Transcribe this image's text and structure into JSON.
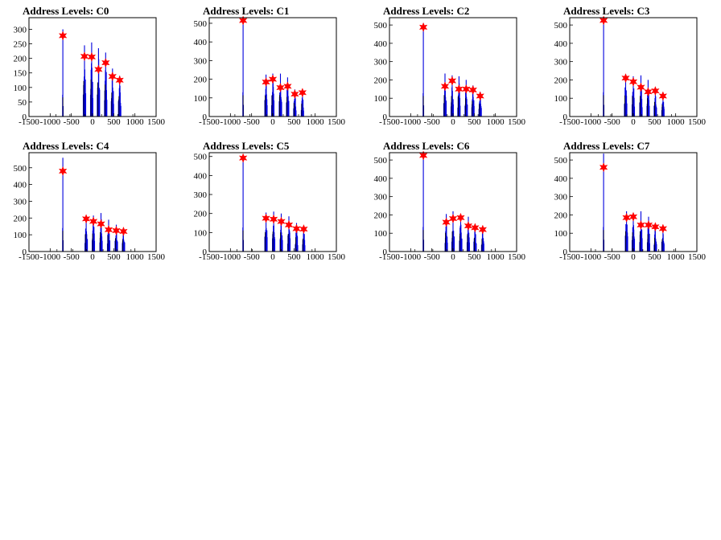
{
  "chart_data": [
    {
      "type": "bar",
      "title": "Address Levels: C0",
      "xlabel": "",
      "ylabel": "",
      "xlim": [
        -1500,
        1500
      ],
      "ylim": [
        0,
        340
      ],
      "xticks": [
        -1500,
        -1000,
        -500,
        0,
        500,
        1000,
        1500
      ],
      "yticks": [
        0,
        50,
        100,
        150,
        200,
        250,
        300
      ],
      "peaks": [
        {
          "x": -700,
          "y": 278
        },
        {
          "x": -190,
          "y": 207
        },
        {
          "x": -20,
          "y": 205
        },
        {
          "x": 140,
          "y": 162
        },
        {
          "x": 310,
          "y": 185
        },
        {
          "x": 470,
          "y": 138
        },
        {
          "x": 640,
          "y": 125
        }
      ],
      "max_heights": [
        300,
        245,
        255,
        235,
        220,
        165,
        140
      ]
    },
    {
      "type": "bar",
      "title": "Address Levels: C1",
      "xlabel": "",
      "ylabel": "",
      "xlim": [
        -1500,
        1500
      ],
      "ylim": [
        0,
        530
      ],
      "xticks": [
        -1500,
        -1000,
        -500,
        0,
        500,
        1000,
        1500
      ],
      "yticks": [
        0,
        100,
        200,
        300,
        400,
        500
      ],
      "peaks": [
        {
          "x": -700,
          "y": 515
        },
        {
          "x": -160,
          "y": 185
        },
        {
          "x": 0,
          "y": 200
        },
        {
          "x": 180,
          "y": 155
        },
        {
          "x": 350,
          "y": 162
        },
        {
          "x": 520,
          "y": 120
        },
        {
          "x": 700,
          "y": 128
        }
      ],
      "max_heights": [
        520,
        225,
        230,
        230,
        210,
        145,
        140
      ]
    },
    {
      "type": "bar",
      "title": "Address Levels: C2",
      "xlabel": "",
      "ylabel": "",
      "xlim": [
        -1500,
        1500
      ],
      "ylim": [
        0,
        540
      ],
      "xticks": [
        -1500,
        -1000,
        -500,
        0,
        500,
        1000,
        1500
      ],
      "yticks": [
        0,
        100,
        200,
        300,
        400,
        500
      ],
      "peaks": [
        {
          "x": -700,
          "y": 488
        },
        {
          "x": -190,
          "y": 165
        },
        {
          "x": -20,
          "y": 195
        },
        {
          "x": 140,
          "y": 150
        },
        {
          "x": 310,
          "y": 150
        },
        {
          "x": 470,
          "y": 145
        },
        {
          "x": 640,
          "y": 112
        }
      ],
      "max_heights": [
        510,
        235,
        225,
        220,
        200,
        170,
        135
      ]
    },
    {
      "type": "bar",
      "title": "Address Levels: C3",
      "xlabel": "",
      "ylabel": "",
      "xlim": [
        -1500,
        1500
      ],
      "ylim": [
        0,
        540
      ],
      "xticks": [
        -1500,
        -1000,
        -500,
        0,
        500,
        1000,
        1500
      ],
      "yticks": [
        0,
        100,
        200,
        300,
        400,
        500
      ],
      "peaks": [
        {
          "x": -700,
          "y": 525
        },
        {
          "x": -180,
          "y": 210
        },
        {
          "x": 0,
          "y": 190
        },
        {
          "x": 180,
          "y": 160
        },
        {
          "x": 350,
          "y": 135
        },
        {
          "x": 520,
          "y": 140
        },
        {
          "x": 700,
          "y": 112
        }
      ],
      "max_heights": [
        530,
        230,
        220,
        225,
        200,
        160,
        130
      ]
    },
    {
      "type": "bar",
      "title": "Address Levels: C4",
      "xlabel": "",
      "ylabel": "",
      "xlim": [
        -1500,
        1500
      ],
      "ylim": [
        0,
        590
      ],
      "xticks": [
        -1500,
        -1000,
        -500,
        0,
        500,
        1000,
        1500
      ],
      "yticks": [
        0,
        100,
        200,
        300,
        400,
        500
      ],
      "peaks": [
        {
          "x": -700,
          "y": 480
        },
        {
          "x": -150,
          "y": 195
        },
        {
          "x": 20,
          "y": 180
        },
        {
          "x": 200,
          "y": 165
        },
        {
          "x": 380,
          "y": 130
        },
        {
          "x": 560,
          "y": 125
        },
        {
          "x": 730,
          "y": 120
        }
      ],
      "max_heights": [
        560,
        210,
        215,
        230,
        190,
        160,
        140
      ]
    },
    {
      "type": "bar",
      "title": "Address Levels: C5",
      "xlabel": "",
      "ylabel": "",
      "xlim": [
        -1500,
        1500
      ],
      "ylim": [
        0,
        520
      ],
      "xticks": [
        -1500,
        -1000,
        -500,
        0,
        500,
        1000,
        1500
      ],
      "yticks": [
        0,
        100,
        200,
        300,
        400,
        500
      ],
      "peaks": [
        {
          "x": -700,
          "y": 492
        },
        {
          "x": -160,
          "y": 175
        },
        {
          "x": 20,
          "y": 170
        },
        {
          "x": 200,
          "y": 158
        },
        {
          "x": 380,
          "y": 140
        },
        {
          "x": 560,
          "y": 120
        },
        {
          "x": 730,
          "y": 118
        }
      ],
      "max_heights": [
        505,
        205,
        210,
        200,
        185,
        150,
        135
      ]
    },
    {
      "type": "bar",
      "title": "Address Levels: C6",
      "xlabel": "",
      "ylabel": "",
      "xlim": [
        -1500,
        1500
      ],
      "ylim": [
        0,
        540
      ],
      "xticks": [
        -1500,
        -1000,
        -500,
        0,
        500,
        1000,
        1500
      ],
      "yticks": [
        0,
        100,
        200,
        300,
        400,
        500
      ],
      "peaks": [
        {
          "x": -700,
          "y": 525
        },
        {
          "x": -160,
          "y": 160
        },
        {
          "x": 0,
          "y": 180
        },
        {
          "x": 180,
          "y": 185
        },
        {
          "x": 360,
          "y": 140
        },
        {
          "x": 520,
          "y": 130
        },
        {
          "x": 700,
          "y": 120
        }
      ],
      "max_heights": [
        535,
        205,
        220,
        195,
        190,
        150,
        135
      ]
    },
    {
      "type": "bar",
      "title": "Address Levels: C7",
      "xlabel": "",
      "ylabel": "",
      "xlim": [
        -1500,
        1500
      ],
      "ylim": [
        0,
        540
      ],
      "xticks": [
        -1500,
        -1000,
        -500,
        0,
        500,
        1000,
        1500
      ],
      "yticks": [
        0,
        100,
        200,
        300,
        400,
        500
      ],
      "peaks": [
        {
          "x": -700,
          "y": 460
        },
        {
          "x": -160,
          "y": 185
        },
        {
          "x": 0,
          "y": 190
        },
        {
          "x": 180,
          "y": 145
        },
        {
          "x": 360,
          "y": 145
        },
        {
          "x": 520,
          "y": 135
        },
        {
          "x": 700,
          "y": 125
        }
      ],
      "max_heights": [
        535,
        220,
        210,
        220,
        190,
        150,
        135
      ]
    }
  ]
}
